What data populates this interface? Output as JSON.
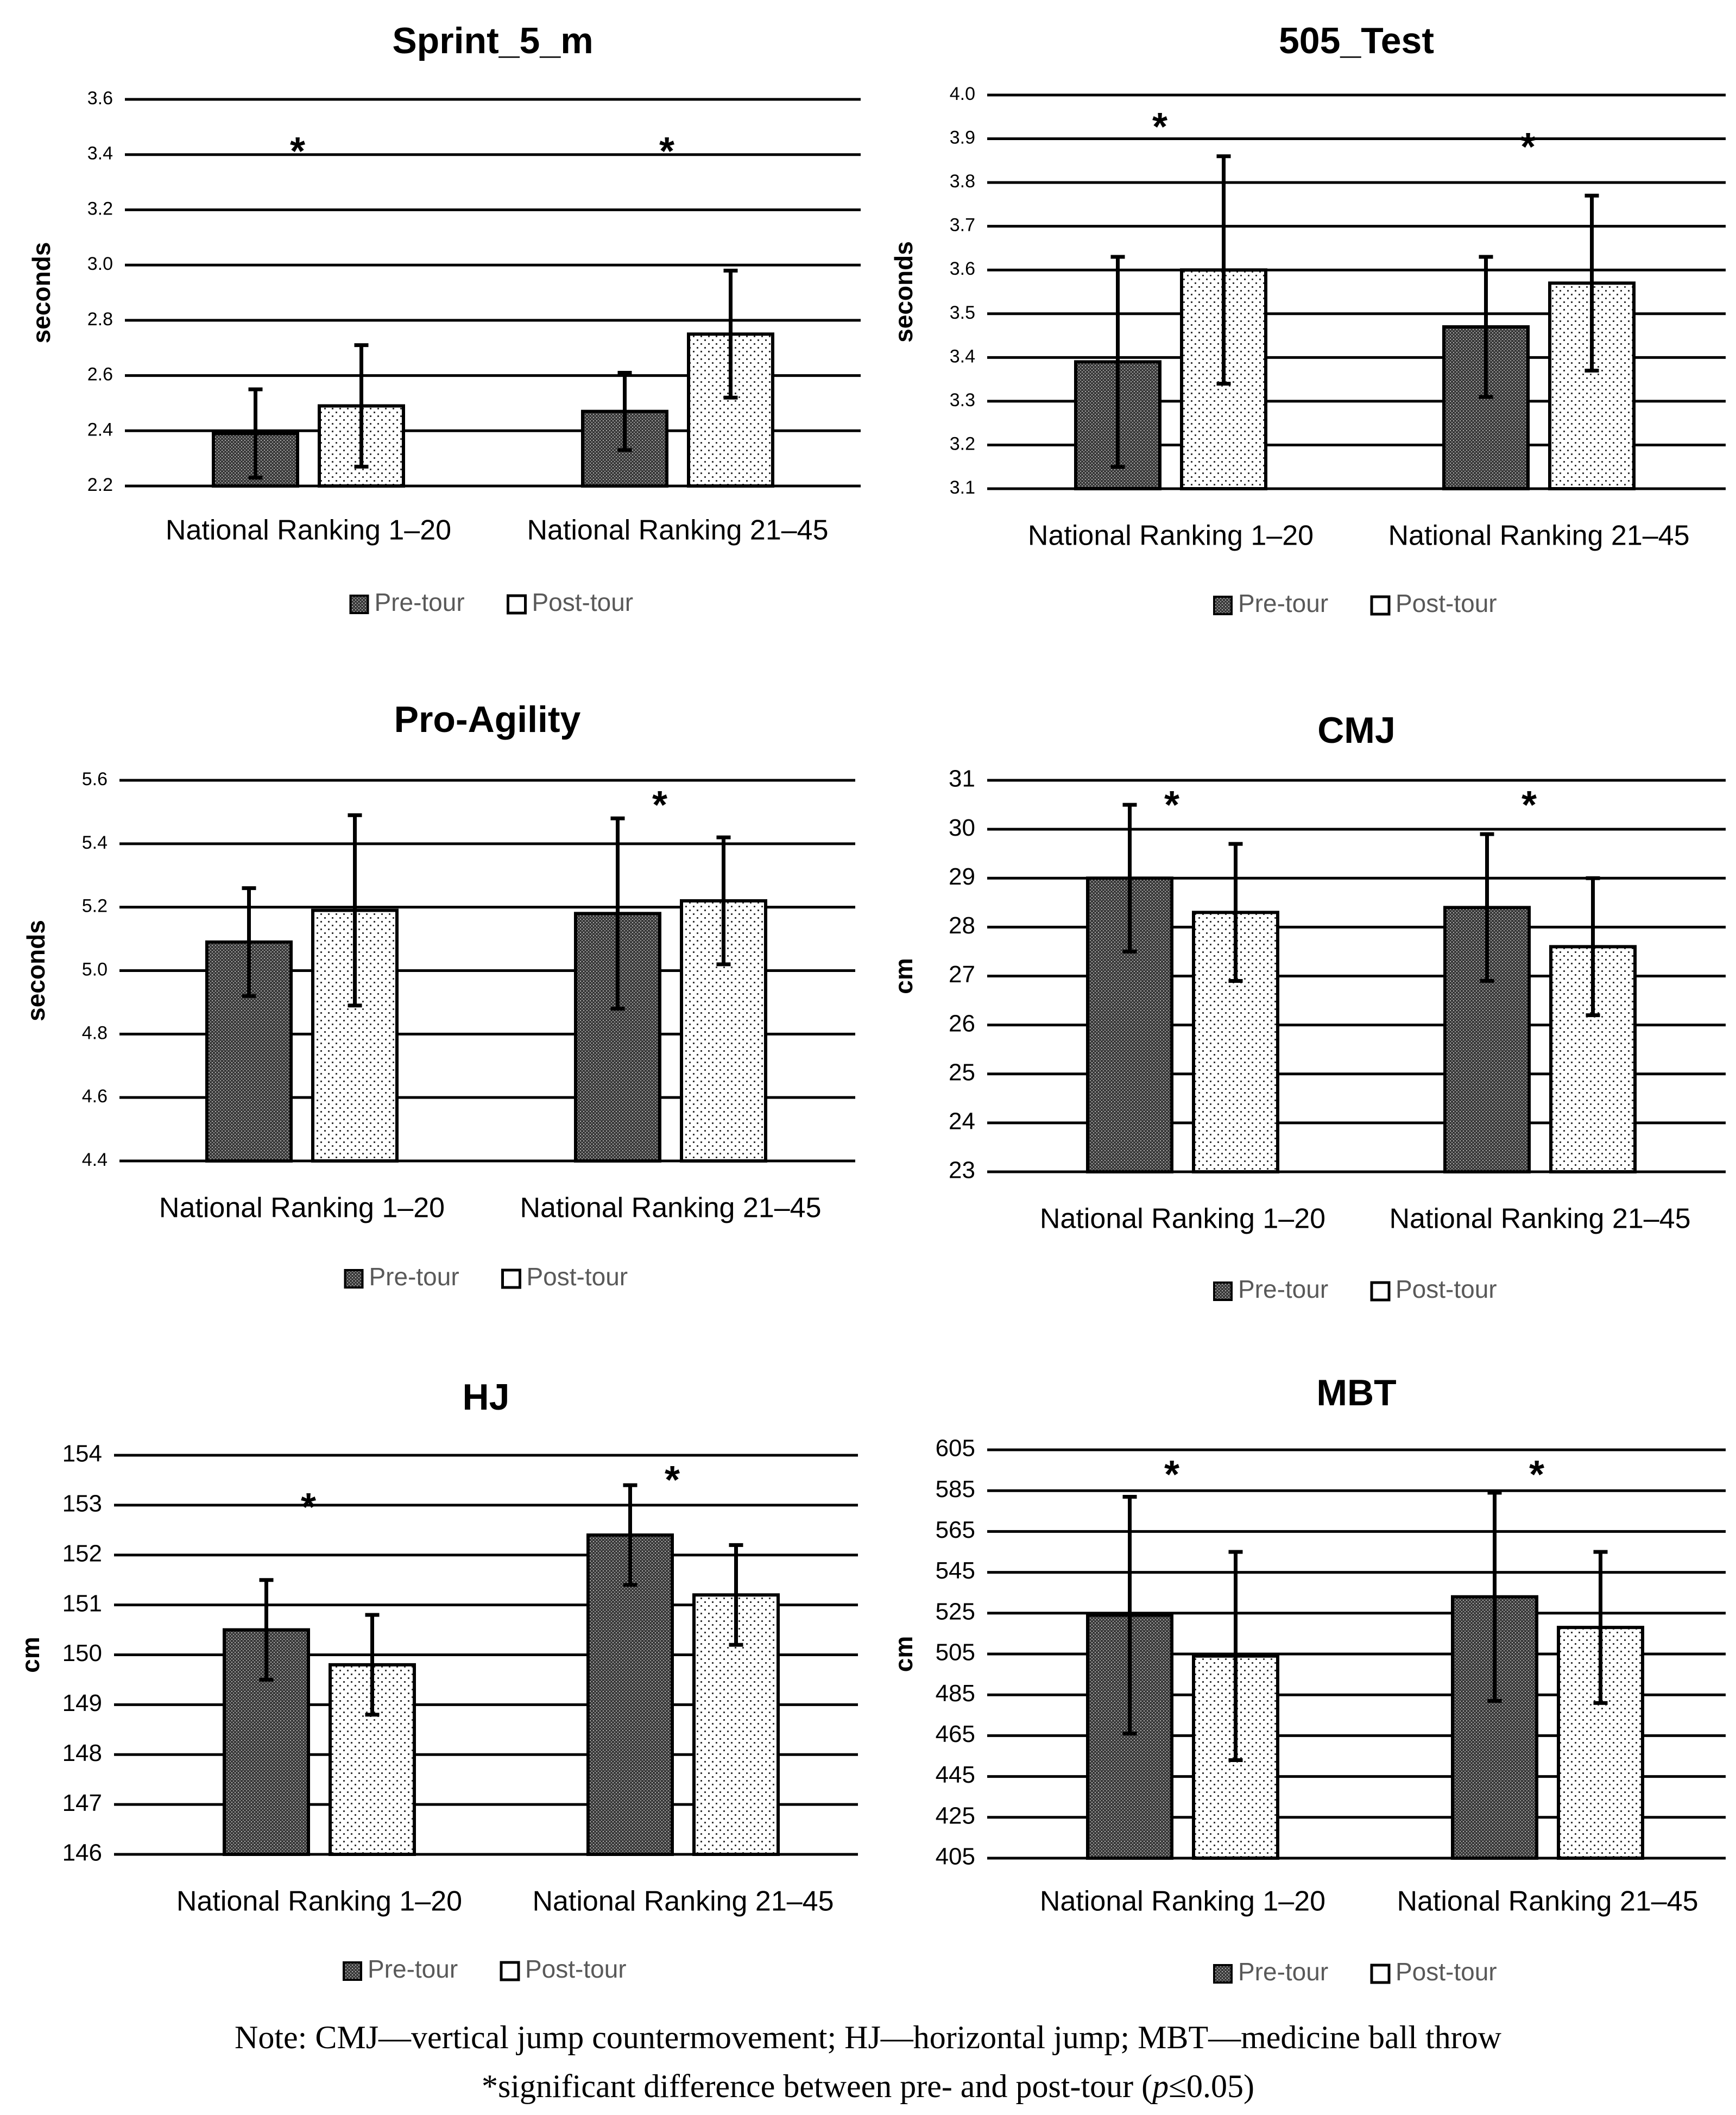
{
  "legend": {
    "pre": "Pre-tour",
    "post": "Post-tour"
  },
  "colors": {
    "bar_pre": "#404040",
    "bar_post": "#ffffff",
    "grid": "#000000"
  },
  "note": {
    "line1": "Note: CMJ—vertical jump countermovement;  HJ—horizontal jump; MBT—medicine ball throw",
    "line2": "*significant difference between pre- and post-tour (p≤0.05)"
  },
  "chart_data": [
    {
      "type": "bar",
      "title": "Sprint_5_m",
      "ylabel": "seconds",
      "categories": [
        "National Ranking 1–20",
        "National Ranking 21–45"
      ],
      "ylim": [
        2.2,
        3.6
      ],
      "yticks": [
        2.2,
        2.4,
        2.6,
        2.8,
        3.0,
        3.2,
        3.4,
        3.6
      ],
      "ytick_decimals": 1,
      "series": [
        {
          "name": "Pre-tour",
          "values": [
            2.39,
            2.47
          ],
          "errors": [
            0.16,
            0.14
          ]
        },
        {
          "name": "Post-tour",
          "values": [
            2.49,
            2.75
          ],
          "errors": [
            0.22,
            0.23
          ]
        }
      ],
      "significance": [
        "*",
        "*"
      ]
    },
    {
      "type": "bar",
      "title": "505_Test",
      "ylabel": "seconds",
      "categories": [
        "National Ranking 1–20",
        "National Ranking 21–45"
      ],
      "ylim": [
        3.1,
        4.0
      ],
      "yticks": [
        3.1,
        3.2,
        3.3,
        3.4,
        3.5,
        3.6,
        3.7,
        3.8,
        3.9,
        4.0
      ],
      "ytick_decimals": 1,
      "series": [
        {
          "name": "Pre-tour",
          "values": [
            3.39,
            3.47
          ],
          "errors": [
            0.24,
            0.16
          ]
        },
        {
          "name": "Post-tour",
          "values": [
            3.6,
            3.57
          ],
          "errors": [
            0.26,
            0.2
          ]
        }
      ],
      "significance": [
        "*",
        "*"
      ]
    },
    {
      "type": "bar",
      "title": "Pro-Agility",
      "ylabel": "seconds",
      "categories": [
        "National Ranking 1–20",
        "National Ranking 21–45"
      ],
      "ylim": [
        4.4,
        5.6
      ],
      "yticks": [
        4.4,
        4.6,
        4.8,
        5.0,
        5.2,
        5.4,
        5.6
      ],
      "ytick_decimals": 1,
      "series": [
        {
          "name": "Pre-tour",
          "values": [
            5.09,
            5.18
          ],
          "errors": [
            0.17,
            0.3
          ]
        },
        {
          "name": "Post-tour",
          "values": [
            5.19,
            5.22
          ],
          "errors": [
            0.3,
            0.2
          ]
        }
      ],
      "significance": [
        "",
        "*"
      ]
    },
    {
      "type": "bar",
      "title": "CMJ",
      "ylabel": "cm",
      "categories": [
        "National Ranking 1–20",
        "National Ranking 21–45"
      ],
      "ylim": [
        23,
        31
      ],
      "yticks": [
        23,
        24,
        25,
        26,
        27,
        28,
        29,
        30,
        31
      ],
      "ytick_decimals": 0,
      "series": [
        {
          "name": "Pre-tour",
          "values": [
            29.0,
            28.4
          ],
          "errors": [
            1.5,
            1.5
          ]
        },
        {
          "name": "Post-tour",
          "values": [
            28.3,
            27.6
          ],
          "errors": [
            1.4,
            1.4
          ]
        }
      ],
      "significance": [
        "*",
        "*"
      ]
    },
    {
      "type": "bar",
      "title": "HJ",
      "ylabel": "cm",
      "categories": [
        "National Ranking 1–20",
        "National Ranking 21–45"
      ],
      "ylim": [
        146,
        154
      ],
      "yticks": [
        146,
        147,
        148,
        149,
        150,
        151,
        152,
        153,
        154
      ],
      "ytick_decimals": 0,
      "series": [
        {
          "name": "Pre-tour",
          "values": [
            150.5,
            152.4
          ],
          "errors": [
            1.0,
            1.0
          ]
        },
        {
          "name": "Post-tour",
          "values": [
            149.8,
            151.2
          ],
          "errors": [
            1.0,
            1.0
          ]
        }
      ],
      "significance": [
        "*",
        "*"
      ]
    },
    {
      "type": "bar",
      "title": "MBT",
      "ylabel": "cm",
      "categories": [
        "National Ranking 1–20",
        "National Ranking 21–45"
      ],
      "ylim": [
        405,
        605
      ],
      "yticks": [
        405,
        425,
        445,
        465,
        485,
        505,
        525,
        545,
        565,
        585,
        605
      ],
      "ytick_decimals": 0,
      "series": [
        {
          "name": "Pre-tour",
          "values": [
            524,
            533
          ],
          "errors": [
            58,
            51
          ]
        },
        {
          "name": "Post-tour",
          "values": [
            504,
            518
          ],
          "errors": [
            51,
            37
          ]
        }
      ],
      "significance": [
        "*",
        "*"
      ]
    }
  ]
}
